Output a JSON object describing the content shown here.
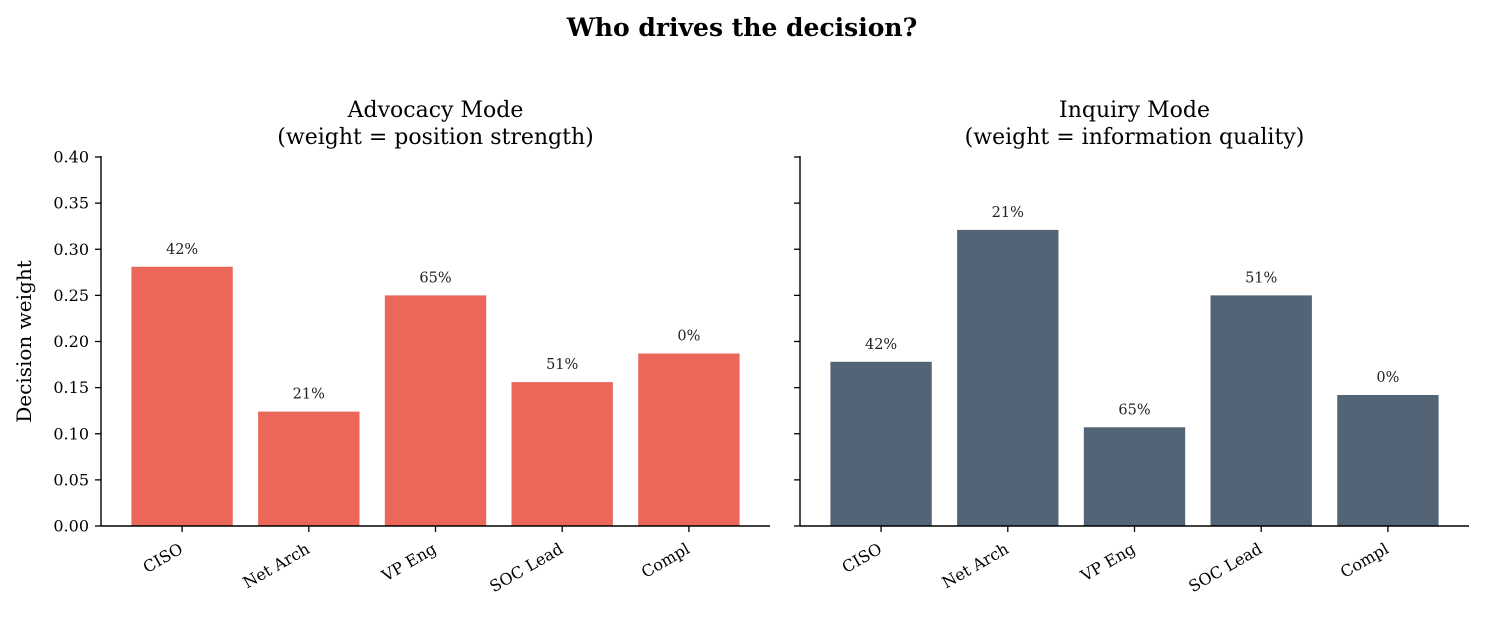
{
  "figure": {
    "title": "Who drives the decision?"
  },
  "chart_data": [
    {
      "type": "bar",
      "title": "Advocacy Mode\n(weight = position strength)",
      "categories": [
        "CISO",
        "Net Arch",
        "VP Eng",
        "SOC Lead",
        "Compl"
      ],
      "values": [
        0.281,
        0.124,
        0.25,
        0.156,
        0.187
      ],
      "data_labels": [
        "42%",
        "21%",
        "65%",
        "51%",
        "0%"
      ],
      "xlabel": "",
      "ylabel": "Decision weight",
      "ylim": [
        0,
        0.4
      ],
      "yticks": [
        "0.00",
        "0.05",
        "0.10",
        "0.15",
        "0.20",
        "0.25",
        "0.30",
        "0.35",
        "0.40"
      ],
      "color": "#eb675a",
      "grid": false
    },
    {
      "type": "bar",
      "title": "Inquiry Mode\n(weight = information quality)",
      "categories": [
        "CISO",
        "Net Arch",
        "VP Eng",
        "SOC Lead",
        "Compl"
      ],
      "values": [
        0.178,
        0.321,
        0.107,
        0.25,
        0.142
      ],
      "data_labels": [
        "42%",
        "21%",
        "65%",
        "51%",
        "0%"
      ],
      "xlabel": "",
      "ylabel": "",
      "ylim": [
        0,
        0.4
      ],
      "yticks": [],
      "color": "#526475",
      "grid": false
    }
  ]
}
